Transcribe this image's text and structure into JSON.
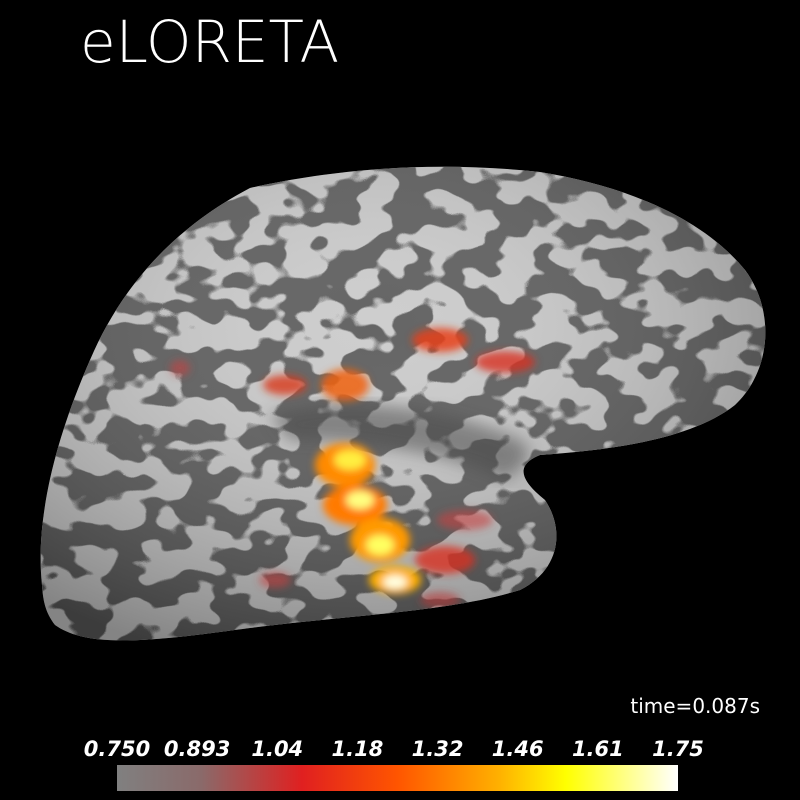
{
  "title": "eLORETA",
  "time_label": "time=0.087s",
  "colorbar": {
    "ticks": [
      "0.750",
      "0.893",
      "1.04",
      "1.18",
      "1.32",
      "1.46",
      "1.61",
      "1.75"
    ]
  }
}
